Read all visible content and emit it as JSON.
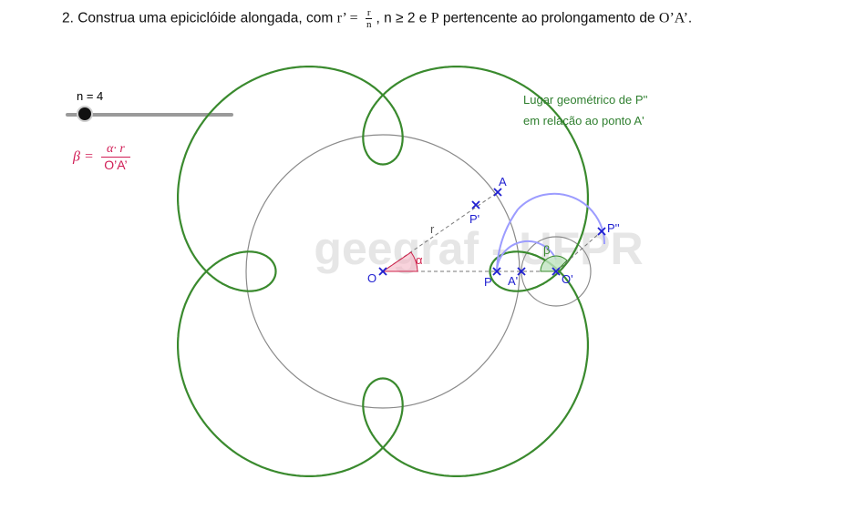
{
  "title": {
    "prefix": "2. Construa uma epiciclóide alongada, com",
    "r_prime": "r’ =",
    "frac_num": "r",
    "frac_den": "n",
    "suffix_a": ", n ≥ 2 e",
    "p_symbol": "P",
    "suffix_b": "pertencente ao prolongamento de",
    "segment": "O’A’",
    "end": "."
  },
  "slider": {
    "label": "n = 4",
    "value": 4
  },
  "formula": {
    "lhs": "β =",
    "numerator": "α· r",
    "denominator": "O’A’"
  },
  "annotation": {
    "line1": "Lugar geométrico de P''",
    "line2": "em relação ao ponto A'"
  },
  "watermark": "geegraf - UFPR",
  "labels": {
    "O": "O",
    "alpha": "α",
    "r": "r",
    "A": "A",
    "P_prime": "P'",
    "P": "P",
    "A_prime": "A'",
    "O_prime": "O'",
    "beta": "β",
    "P_dprime": "P''"
  },
  "colors": {
    "curve": "#3a8a2e",
    "arc": "#9c9cff",
    "point": "#1f1fd0",
    "text_point": "#1f1fd0",
    "alpha": "#d0204a",
    "annotation": "#2f7f2f",
    "circle": "#8a8a8a",
    "formula": "#d01b54"
  }
}
